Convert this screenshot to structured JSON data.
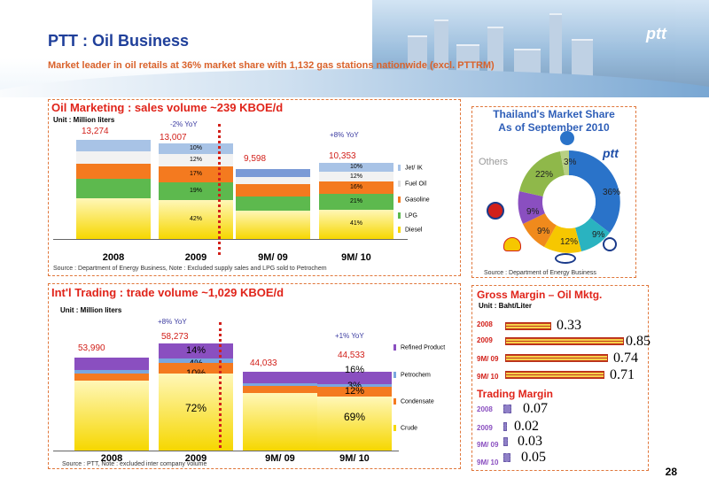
{
  "header": {
    "title": "PTT : Oil Business",
    "subtitle": "Market leader in oil retails at 36%  market share with 1,132 gas stations nationwide (excl. PTTRM)",
    "logo": "ptt"
  },
  "oil_marketing": {
    "title": "Oil Marketing : sales volume ~239 KBOE/d",
    "unit": "Unit : Million liters",
    "yoy_left": "-2% YoY",
    "yoy_right": "+8% YoY",
    "totals": [
      "13,274",
      "13,007",
      "9,598",
      "10,353"
    ],
    "years": [
      "2008",
      "2009",
      "9M/ 09",
      "9M/ 10"
    ],
    "seg_2009": [
      "10%",
      "12%",
      "17%",
      "19%",
      "42%"
    ],
    "seg_9m10": [
      "10%",
      "12%",
      "16%",
      "21%",
      "41%"
    ],
    "legend": [
      "Jet/ IK",
      "Fuel Oil",
      "Gasoline",
      "LPG",
      "Diesel"
    ],
    "source": "Source : Department of Energy Business,  Note : Excluded supply sales and LPG sold to Petrochem"
  },
  "market_share": {
    "title_line1": "Thailand's Market Share",
    "title_line2": "As of September 2010",
    "others_label": "Others",
    "labels": [
      "36%",
      "9%",
      "12%",
      "9%",
      "9%",
      "22%",
      "3%"
    ],
    "source": "Source : Department of Energy Business",
    "colors": [
      "#2a73c9",
      "#2ab3c0",
      "#f6c700",
      "#f08a1c",
      "#8a4fc0",
      "#8fb84a",
      "#b8d084"
    ]
  },
  "intl_trading": {
    "title": "Int'l Trading : trade volume ~1,029 KBOE/d",
    "unit": "Unit : Million liters",
    "yoy_left": "+8% YoY",
    "yoy_right": "+1% YoY",
    "totals": [
      "53,990",
      "58,273",
      "44,033",
      "44,533"
    ],
    "years": [
      "2008",
      "2009",
      "9M/ 09",
      "9M/ 10"
    ],
    "seg_2009": [
      "14%",
      "4%",
      "10%",
      "72%"
    ],
    "seg_9m10": [
      "16%",
      "3%",
      "12%",
      "69%"
    ],
    "legend": [
      "Refined Product",
      "Petrochem",
      "Condensate",
      "Crude"
    ],
    "source": "Source : PTT, Note : excluded inter company volume"
  },
  "gross_margin": {
    "title": "Gross Margin – Oil Mktg.",
    "unit": "Unit : Baht/Liter",
    "rows": [
      {
        "label": "2008",
        "value": "0.33"
      },
      {
        "label": "2009",
        "value": "0.85"
      },
      {
        "label": "9M/ 09",
        "value": "0.74"
      },
      {
        "label": "9M/ 10",
        "value": "0.71"
      }
    ]
  },
  "trading_margin": {
    "title": "Trading Margin",
    "rows": [
      {
        "label": "2008",
        "value": "0.07"
      },
      {
        "label": "2009",
        "value": "0.02"
      },
      {
        "label": "9M/ 09",
        "value": "0.03"
      },
      {
        "label": "9M/ 10",
        "value": "0.05"
      }
    ]
  },
  "page_number": "28"
}
